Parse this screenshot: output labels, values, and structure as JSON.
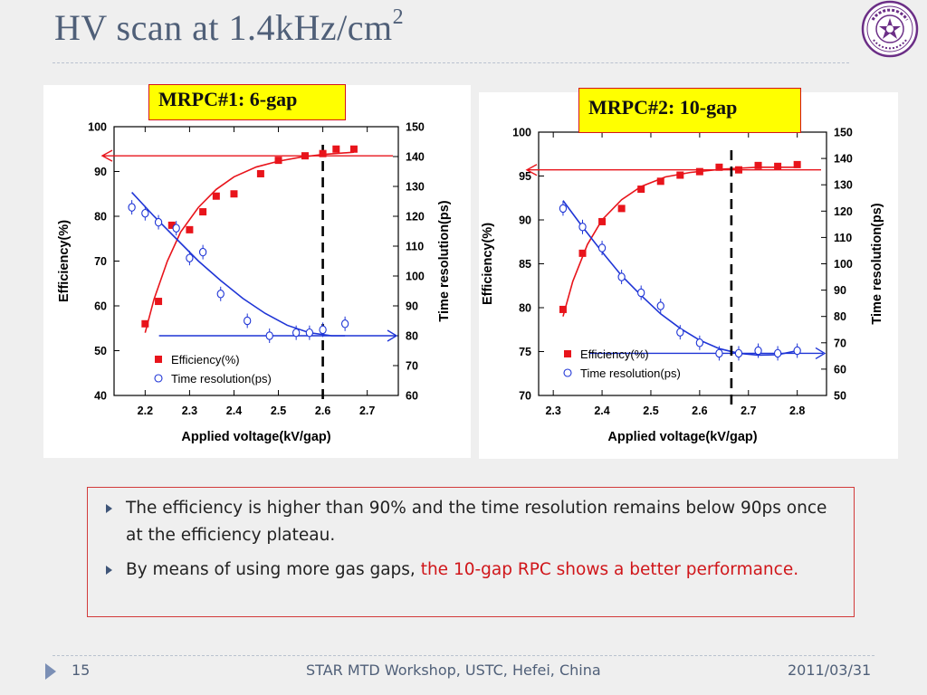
{
  "slide": {
    "title_base": "HV scan at 1.4kHz/cm",
    "title_sup": "2",
    "page_number": "15",
    "footer_center": "STAR MTD Workshop, USTC, Hefei, China",
    "footer_date": "2011/03/31"
  },
  "colors": {
    "title": "#4f5f78",
    "efficiency": "#e8141b",
    "time_resolution": "#1f35d6",
    "box_border": "#d23a3a",
    "highlight_text": "#d0161a",
    "label_fill": "#ffff00"
  },
  "icons": [
    "university-seal-icon",
    "bullet-arrow-icon",
    "footer-arrow-icon"
  ],
  "bullets": [
    {
      "text": "The efficiency is higher than 90% and the time resolution remains below 90ps once at the efficiency plateau.",
      "highlight": ""
    },
    {
      "text": "By means of using more gas gaps, ",
      "highlight": "the 10-gap RPC shows a better performance."
    }
  ],
  "chart_data": [
    {
      "type": "scatter",
      "label": "MRPC#1: 6-gap",
      "xlabel": "Applied voltage(kV/gap)",
      "ylabel": "Efficiency(%)",
      "y2label": "Time resolution(ps)",
      "xlim": [
        2.13,
        2.77
      ],
      "ylim": [
        40,
        100
      ],
      "y2lim": [
        60,
        150
      ],
      "xticks": [
        2.2,
        2.3,
        2.4,
        2.5,
        2.6,
        2.7
      ],
      "yticks": [
        40,
        50,
        60,
        70,
        80,
        90,
        100
      ],
      "y2ticks": [
        60,
        70,
        80,
        90,
        100,
        110,
        120,
        130,
        140,
        150
      ],
      "plateau_voltage": 2.6,
      "efficiency_arrow_y": 93.5,
      "time_arrow_y2": 80,
      "legend": [
        "Efficiency(%)",
        "Time resolution(ps)"
      ],
      "legend_position": "bottom-left",
      "grid": false,
      "series": [
        {
          "name": "Efficiency(%)",
          "axis": "left",
          "marker": "square",
          "x": [
            2.2,
            2.23,
            2.26,
            2.3,
            2.33,
            2.36,
            2.4,
            2.46,
            2.5,
            2.56,
            2.6,
            2.63,
            2.67
          ],
          "y": [
            56,
            61,
            78,
            77,
            81,
            84.5,
            85,
            89.5,
            92.5,
            93.5,
            94,
            95,
            95
          ],
          "fit": [
            [
              2.2,
              54
            ],
            [
              2.22,
              61.5
            ],
            [
              2.25,
              70
            ],
            [
              2.28,
              76.5
            ],
            [
              2.32,
              82
            ],
            [
              2.36,
              86
            ],
            [
              2.4,
              88.8
            ],
            [
              2.45,
              91
            ],
            [
              2.5,
              92.3
            ],
            [
              2.55,
              93.2
            ],
            [
              2.6,
              93.8
            ],
            [
              2.67,
              94.3
            ]
          ]
        },
        {
          "name": "Time resolution(ps)",
          "axis": "right",
          "marker": "circle",
          "x": [
            2.17,
            2.2,
            2.23,
            2.27,
            2.3,
            2.33,
            2.37,
            2.43,
            2.48,
            2.54,
            2.57,
            2.6,
            2.65
          ],
          "y": [
            123,
            121,
            118,
            116,
            106,
            108,
            94,
            85,
            80,
            81,
            81,
            82,
            84
          ],
          "fit": [
            [
              2.17,
              128
            ],
            [
              2.22,
              120
            ],
            [
              2.27,
              112.5
            ],
            [
              2.32,
              105
            ],
            [
              2.37,
              98.5
            ],
            [
              2.42,
              92.5
            ],
            [
              2.47,
              87.5
            ],
            [
              2.52,
              83.5
            ],
            [
              2.57,
              81
            ],
            [
              2.62,
              80
            ],
            [
              2.65,
              80
            ]
          ]
        }
      ]
    },
    {
      "type": "scatter",
      "label": "MRPC#2: 10-gap",
      "xlabel": "Applied voltage(kV/gap)",
      "ylabel": "Efficiency(%)",
      "y2label": "Time resolution(ps)",
      "xlim": [
        2.27,
        2.86
      ],
      "ylim": [
        70,
        100
      ],
      "y2lim": [
        50,
        150
      ],
      "xticks": [
        2.3,
        2.4,
        2.5,
        2.6,
        2.7,
        2.8
      ],
      "yticks": [
        70,
        75,
        80,
        85,
        90,
        95,
        100
      ],
      "y2ticks": [
        50,
        60,
        70,
        80,
        90,
        100,
        110,
        120,
        130,
        140,
        150
      ],
      "plateau_voltage": 2.665,
      "efficiency_arrow_y": 95.7,
      "time_arrow_y2": 66,
      "legend": [
        "Efficiency(%)",
        "Time resolution(ps)"
      ],
      "legend_position": "bottom-left",
      "grid": false,
      "series": [
        {
          "name": "Efficiency(%)",
          "axis": "left",
          "marker": "square",
          "x": [
            2.32,
            2.36,
            2.4,
            2.44,
            2.48,
            2.52,
            2.56,
            2.6,
            2.64,
            2.68,
            2.72,
            2.76,
            2.8
          ],
          "y": [
            79.8,
            86.2,
            89.8,
            91.3,
            93.5,
            94.4,
            95.1,
            95.5,
            96,
            95.7,
            96.2,
            96.1,
            96.3
          ],
          "fit": [
            [
              2.32,
              79
            ],
            [
              2.34,
              83
            ],
            [
              2.37,
              87.2
            ],
            [
              2.4,
              90
            ],
            [
              2.44,
              92.3
            ],
            [
              2.48,
              93.8
            ],
            [
              2.53,
              94.9
            ],
            [
              2.58,
              95.4
            ],
            [
              2.65,
              95.8
            ],
            [
              2.72,
              96
            ],
            [
              2.8,
              96
            ]
          ]
        },
        {
          "name": "Time resolution(ps)",
          "axis": "right",
          "marker": "circle",
          "x": [
            2.32,
            2.36,
            2.4,
            2.44,
            2.48,
            2.52,
            2.56,
            2.6,
            2.64,
            2.68,
            2.72,
            2.76,
            2.8
          ],
          "y": [
            121,
            114,
            106,
            95,
            89,
            84,
            74,
            70,
            66,
            66,
            67,
            66,
            67
          ],
          "fit": [
            [
              2.32,
              124
            ],
            [
              2.36,
              114
            ],
            [
              2.4,
              104.5
            ],
            [
              2.44,
              95.5
            ],
            [
              2.48,
              88
            ],
            [
              2.52,
              81
            ],
            [
              2.56,
              75.5
            ],
            [
              2.6,
              71
            ],
            [
              2.64,
              67.8
            ],
            [
              2.68,
              66
            ],
            [
              2.72,
              65.3
            ],
            [
              2.76,
              65.5
            ],
            [
              2.8,
              67
            ]
          ]
        }
      ]
    }
  ]
}
